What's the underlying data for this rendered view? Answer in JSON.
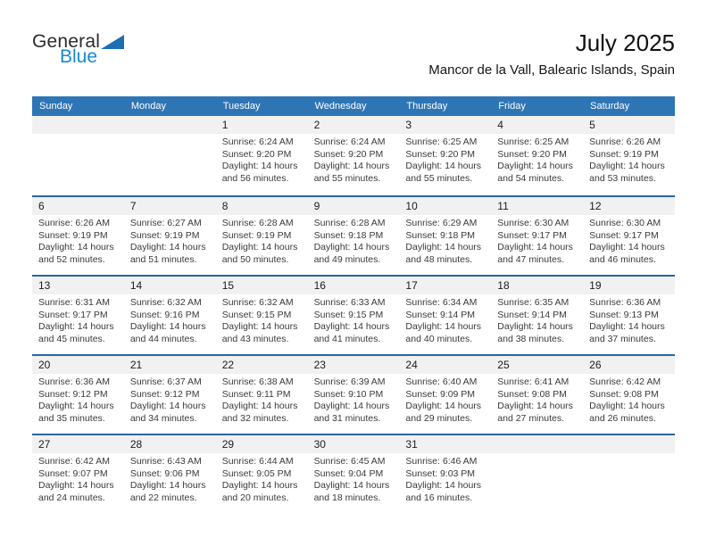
{
  "logo": {
    "general": "General",
    "blue": "Blue"
  },
  "header": {
    "title": "July 2025",
    "subtitle": "Mancor de la Vall, Balearic Islands, Spain"
  },
  "colors": {
    "header_blue": "#2e75b6",
    "week_separator_blue": "#2767a3",
    "date_band_gray": "#f1f1f1",
    "logo_text_blue": "#1789ce",
    "logo_triangle_blue": "#1d6fb5"
  },
  "calendar": {
    "weekdays": [
      "Sunday",
      "Monday",
      "Tuesday",
      "Wednesday",
      "Thursday",
      "Friday",
      "Saturday"
    ],
    "weeks": [
      [
        null,
        null,
        {
          "day": "1",
          "sunrise": "Sunrise: 6:24 AM",
          "sunset": "Sunset: 9:20 PM",
          "daylight": "Daylight: 14 hours and 56 minutes."
        },
        {
          "day": "2",
          "sunrise": "Sunrise: 6:24 AM",
          "sunset": "Sunset: 9:20 PM",
          "daylight": "Daylight: 14 hours and 55 minutes."
        },
        {
          "day": "3",
          "sunrise": "Sunrise: 6:25 AM",
          "sunset": "Sunset: 9:20 PM",
          "daylight": "Daylight: 14 hours and 55 minutes."
        },
        {
          "day": "4",
          "sunrise": "Sunrise: 6:25 AM",
          "sunset": "Sunset: 9:20 PM",
          "daylight": "Daylight: 14 hours and 54 minutes."
        },
        {
          "day": "5",
          "sunrise": "Sunrise: 6:26 AM",
          "sunset": "Sunset: 9:19 PM",
          "daylight": "Daylight: 14 hours and 53 minutes."
        }
      ],
      [
        {
          "day": "6",
          "sunrise": "Sunrise: 6:26 AM",
          "sunset": "Sunset: 9:19 PM",
          "daylight": "Daylight: 14 hours and 52 minutes."
        },
        {
          "day": "7",
          "sunrise": "Sunrise: 6:27 AM",
          "sunset": "Sunset: 9:19 PM",
          "daylight": "Daylight: 14 hours and 51 minutes."
        },
        {
          "day": "8",
          "sunrise": "Sunrise: 6:28 AM",
          "sunset": "Sunset: 9:19 PM",
          "daylight": "Daylight: 14 hours and 50 minutes."
        },
        {
          "day": "9",
          "sunrise": "Sunrise: 6:28 AM",
          "sunset": "Sunset: 9:18 PM",
          "daylight": "Daylight: 14 hours and 49 minutes."
        },
        {
          "day": "10",
          "sunrise": "Sunrise: 6:29 AM",
          "sunset": "Sunset: 9:18 PM",
          "daylight": "Daylight: 14 hours and 48 minutes."
        },
        {
          "day": "11",
          "sunrise": "Sunrise: 6:30 AM",
          "sunset": "Sunset: 9:17 PM",
          "daylight": "Daylight: 14 hours and 47 minutes."
        },
        {
          "day": "12",
          "sunrise": "Sunrise: 6:30 AM",
          "sunset": "Sunset: 9:17 PM",
          "daylight": "Daylight: 14 hours and 46 minutes."
        }
      ],
      [
        {
          "day": "13",
          "sunrise": "Sunrise: 6:31 AM",
          "sunset": "Sunset: 9:17 PM",
          "daylight": "Daylight: 14 hours and 45 minutes."
        },
        {
          "day": "14",
          "sunrise": "Sunrise: 6:32 AM",
          "sunset": "Sunset: 9:16 PM",
          "daylight": "Daylight: 14 hours and 44 minutes."
        },
        {
          "day": "15",
          "sunrise": "Sunrise: 6:32 AM",
          "sunset": "Sunset: 9:15 PM",
          "daylight": "Daylight: 14 hours and 43 minutes."
        },
        {
          "day": "16",
          "sunrise": "Sunrise: 6:33 AM",
          "sunset": "Sunset: 9:15 PM",
          "daylight": "Daylight: 14 hours and 41 minutes."
        },
        {
          "day": "17",
          "sunrise": "Sunrise: 6:34 AM",
          "sunset": "Sunset: 9:14 PM",
          "daylight": "Daylight: 14 hours and 40 minutes."
        },
        {
          "day": "18",
          "sunrise": "Sunrise: 6:35 AM",
          "sunset": "Sunset: 9:14 PM",
          "daylight": "Daylight: 14 hours and 38 minutes."
        },
        {
          "day": "19",
          "sunrise": "Sunrise: 6:36 AM",
          "sunset": "Sunset: 9:13 PM",
          "daylight": "Daylight: 14 hours and 37 minutes."
        }
      ],
      [
        {
          "day": "20",
          "sunrise": "Sunrise: 6:36 AM",
          "sunset": "Sunset: 9:12 PM",
          "daylight": "Daylight: 14 hours and 35 minutes."
        },
        {
          "day": "21",
          "sunrise": "Sunrise: 6:37 AM",
          "sunset": "Sunset: 9:12 PM",
          "daylight": "Daylight: 14 hours and 34 minutes."
        },
        {
          "day": "22",
          "sunrise": "Sunrise: 6:38 AM",
          "sunset": "Sunset: 9:11 PM",
          "daylight": "Daylight: 14 hours and 32 minutes."
        },
        {
          "day": "23",
          "sunrise": "Sunrise: 6:39 AM",
          "sunset": "Sunset: 9:10 PM",
          "daylight": "Daylight: 14 hours and 31 minutes."
        },
        {
          "day": "24",
          "sunrise": "Sunrise: 6:40 AM",
          "sunset": "Sunset: 9:09 PM",
          "daylight": "Daylight: 14 hours and 29 minutes."
        },
        {
          "day": "25",
          "sunrise": "Sunrise: 6:41 AM",
          "sunset": "Sunset: 9:08 PM",
          "daylight": "Daylight: 14 hours and 27 minutes."
        },
        {
          "day": "26",
          "sunrise": "Sunrise: 6:42 AM",
          "sunset": "Sunset: 9:08 PM",
          "daylight": "Daylight: 14 hours and 26 minutes."
        }
      ],
      [
        {
          "day": "27",
          "sunrise": "Sunrise: 6:42 AM",
          "sunset": "Sunset: 9:07 PM",
          "daylight": "Daylight: 14 hours and 24 minutes."
        },
        {
          "day": "28",
          "sunrise": "Sunrise: 6:43 AM",
          "sunset": "Sunset: 9:06 PM",
          "daylight": "Daylight: 14 hours and 22 minutes."
        },
        {
          "day": "29",
          "sunrise": "Sunrise: 6:44 AM",
          "sunset": "Sunset: 9:05 PM",
          "daylight": "Daylight: 14 hours and 20 minutes."
        },
        {
          "day": "30",
          "sunrise": "Sunrise: 6:45 AM",
          "sunset": "Sunset: 9:04 PM",
          "daylight": "Daylight: 14 hours and 18 minutes."
        },
        {
          "day": "31",
          "sunrise": "Sunrise: 6:46 AM",
          "sunset": "Sunset: 9:03 PM",
          "daylight": "Daylight: 14 hours and 16 minutes."
        },
        null,
        null
      ]
    ]
  }
}
